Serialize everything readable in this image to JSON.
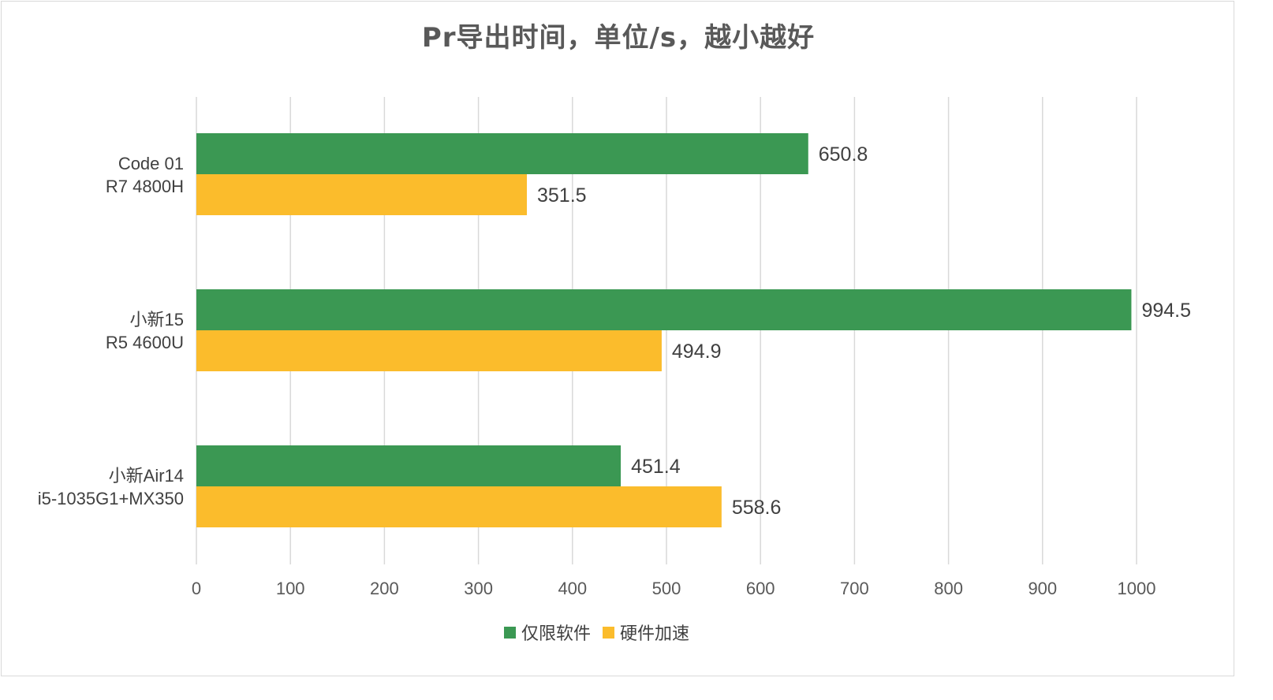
{
  "chart_data": {
    "type": "bar",
    "orientation": "horizontal",
    "title": "Pr导出时间，单位/s，越小越好",
    "categories": [
      [
        "Code 01",
        "R7 4800H"
      ],
      [
        "小新15",
        "R5 4600U"
      ],
      [
        "小新Air14",
        "i5-1035G1+MX350"
      ]
    ],
    "series": [
      {
        "name": "仅限软件",
        "color": "#3b9853",
        "values": [
          650.8,
          994.5,
          451.4
        ]
      },
      {
        "name": "硬件加速",
        "color": "#fbbc2c",
        "values": [
          351.5,
          494.9,
          558.6
        ]
      }
    ],
    "xlim": [
      0,
      1000
    ],
    "xticks": [
      0,
      100,
      200,
      300,
      400,
      500,
      600,
      700,
      800,
      900,
      1000
    ],
    "grid": true,
    "legend_position": "bottom",
    "data_labels": true,
    "colors": {
      "grid": "#d9d9d9",
      "text": "#404040"
    }
  }
}
